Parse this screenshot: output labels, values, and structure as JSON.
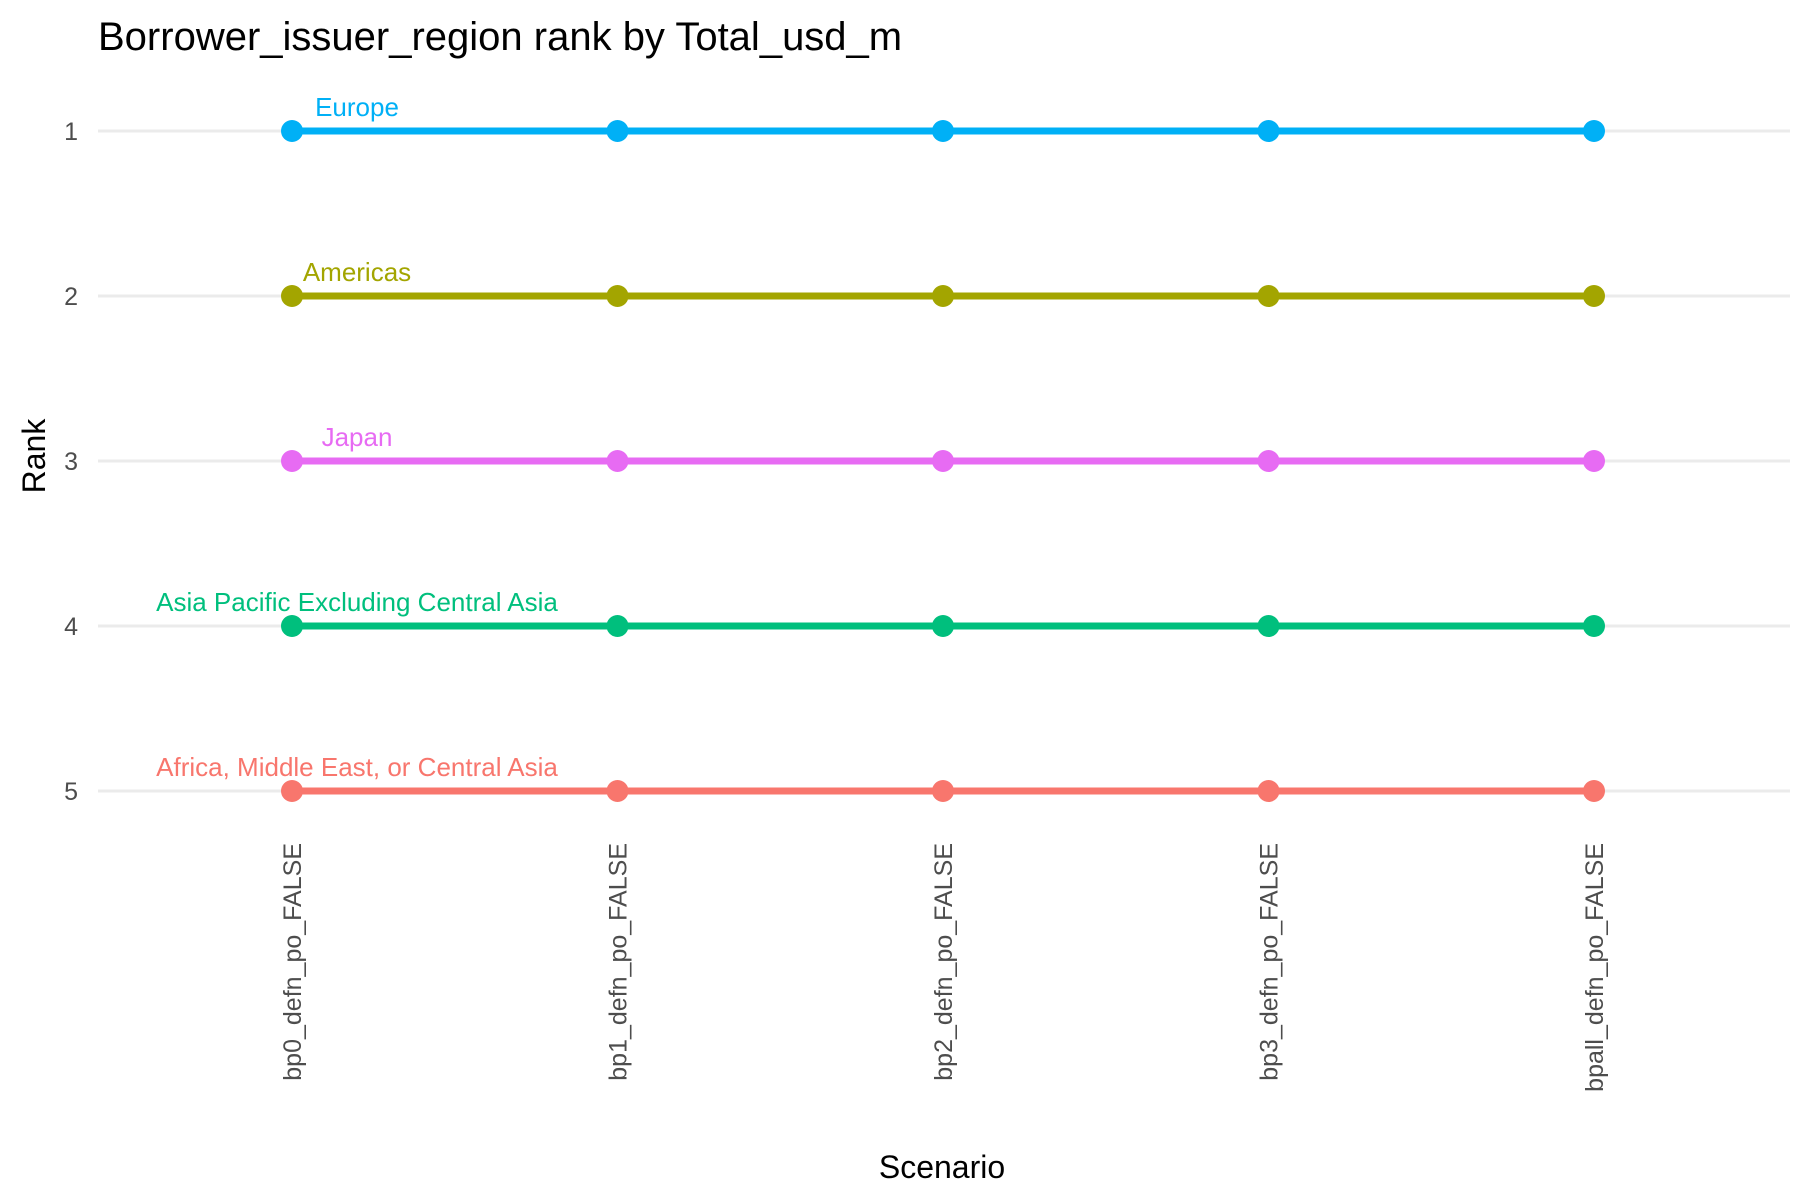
{
  "chart_data": {
    "type": "line",
    "title": "Borrower_issuer_region rank by Total_usd_m",
    "xlabel": "Scenario",
    "ylabel": "Rank",
    "categories": [
      "bp0_defn_po_FALSE",
      "bp1_defn_po_FALSE",
      "bp2_defn_po_FALSE",
      "bp3_defn_po_FALSE",
      "bpall_defn_po_FALSE"
    ],
    "y_ticks": [
      "1",
      "2",
      "3",
      "4",
      "5"
    ],
    "ylim": [
      1,
      5
    ],
    "y_reversed": true,
    "grid": true,
    "legend": "none",
    "series": [
      {
        "name": "Europe",
        "color": "#00b0f6",
        "values": [
          1,
          1,
          1,
          1,
          1
        ]
      },
      {
        "name": "Americas",
        "color": "#a3a500",
        "values": [
          2,
          2,
          2,
          2,
          2
        ]
      },
      {
        "name": "Japan",
        "color": "#e76bf3",
        "values": [
          3,
          3,
          3,
          3,
          3
        ]
      },
      {
        "name": "Asia Pacific Excluding Central Asia",
        "color": "#00bf7d",
        "values": [
          4,
          4,
          4,
          4,
          4
        ]
      },
      {
        "name": "Africa, Middle East, or Central Asia",
        "color": "#f8766d",
        "values": [
          5,
          5,
          5,
          5,
          5
        ]
      }
    ]
  }
}
